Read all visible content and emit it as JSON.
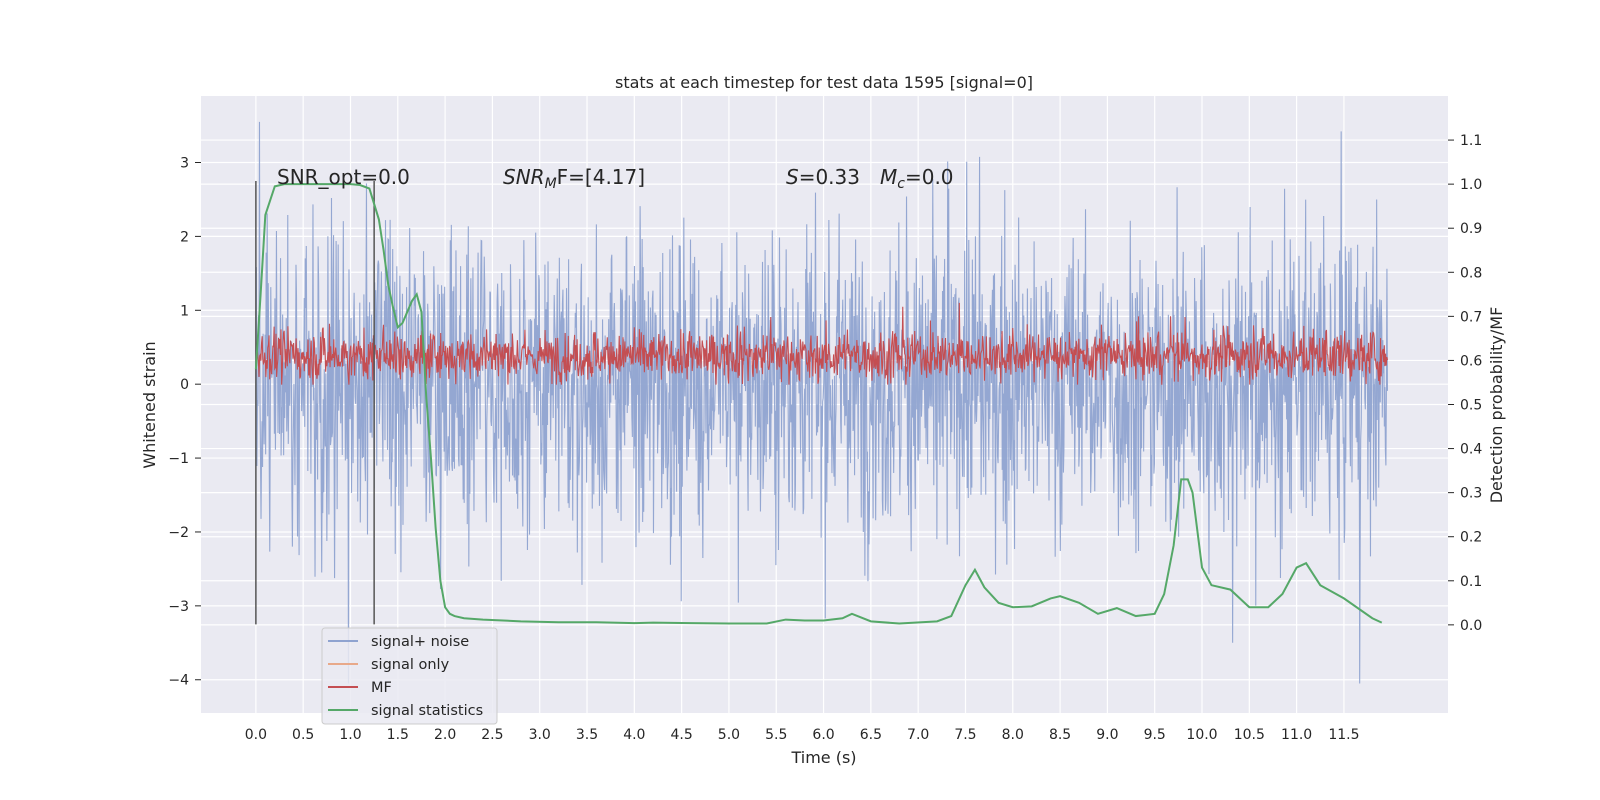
{
  "chart_data": {
    "type": "line",
    "title": "stats at each timestep for test data 1595 [signal=0]",
    "xlabel": "Time (s)",
    "ylabel_left": "Whitened strain",
    "ylabel_right": "Detection probability/MF",
    "xlim": [
      -0.58,
      12.6
    ],
    "ylim_left": [
      -4.45,
      3.9
    ],
    "ylim_right": [
      -0.2,
      1.2
    ],
    "x_ticks": [
      "0.0",
      "0.5",
      "1.0",
      "1.5",
      "2.0",
      "2.5",
      "3.0",
      "3.5",
      "4.0",
      "4.5",
      "5.0",
      "5.5",
      "6.0",
      "6.5",
      "7.0",
      "7.5",
      "8.0",
      "8.5",
      "9.0",
      "9.5",
      "10.0",
      "10.5",
      "11.0",
      "11.5"
    ],
    "y_left_ticks": [
      "3",
      "2",
      "1",
      "0",
      "−1",
      "−2",
      "−3",
      "−4"
    ],
    "y_right_ticks": [
      "1.1",
      "1.0",
      "0.9",
      "0.8",
      "0.7",
      "0.6",
      "0.5",
      "0.4",
      "0.3",
      "0.2",
      "0.1",
      "0.0"
    ],
    "grid": true,
    "legend_position": "lower-left",
    "annotations": {
      "snr_opt": "SNR_opt=0.0",
      "snr_mf_main": "SNR",
      "snr_mf_sub": "M",
      "snr_mf_rest": "F=[4.17]",
      "s_label": "S",
      "s_value": "=0.33",
      "mc_main": "M",
      "mc_sub": "c",
      "mc_value": "=0.0"
    },
    "vertical_markers_x": [
      0.0,
      1.25
    ],
    "series": [
      {
        "name": "signal+ noise",
        "color": "#8fa3d0",
        "axis": "left",
        "noise_envelope": {
          "x_range": [
            0.0,
            11.96
          ],
          "typical_range": [
            -1.5,
            1.5
          ],
          "max": 3.55,
          "min": -4.05
        }
      },
      {
        "name": "signal only",
        "color": "#e8a98a",
        "axis": "left",
        "values": []
      },
      {
        "name": "MF",
        "color": "#c44e52",
        "axis": "right",
        "noise_envelope": {
          "x_range": [
            0.0,
            11.96
          ],
          "typical_range": [
            0.54,
            0.68
          ],
          "max": 0.74
        }
      },
      {
        "name": "signal statistics",
        "color": "#55a868",
        "axis": "right",
        "x": [
          0.0,
          0.05,
          0.1,
          0.2,
          0.3,
          0.5,
          0.8,
          1.0,
          1.1,
          1.2,
          1.3,
          1.35,
          1.4,
          1.45,
          1.5,
          1.55,
          1.6,
          1.65,
          1.7,
          1.75,
          1.8,
          1.85,
          1.9,
          1.95,
          2.0,
          2.05,
          2.1,
          2.2,
          2.4,
          2.8,
          3.2,
          3.6,
          4.0,
          4.2,
          4.6,
          5.0,
          5.4,
          5.6,
          5.8,
          6.0,
          6.2,
          6.3,
          6.5,
          6.8,
          7.2,
          7.35,
          7.5,
          7.6,
          7.7,
          7.85,
          8.0,
          8.2,
          8.4,
          8.5,
          8.7,
          8.9,
          9.1,
          9.3,
          9.5,
          9.6,
          9.7,
          9.78,
          9.85,
          9.9,
          10.0,
          10.1,
          10.3,
          10.5,
          10.7,
          10.85,
          11.0,
          11.1,
          11.25,
          11.5,
          11.8,
          11.9
        ],
        "y": [
          0.58,
          0.75,
          0.93,
          0.995,
          1.0,
          1.0,
          1.0,
          1.0,
          0.998,
          0.99,
          0.92,
          0.85,
          0.77,
          0.72,
          0.675,
          0.685,
          0.71,
          0.735,
          0.75,
          0.71,
          0.52,
          0.38,
          0.22,
          0.1,
          0.04,
          0.025,
          0.02,
          0.015,
          0.012,
          0.008,
          0.006,
          0.006,
          0.004,
          0.005,
          0.004,
          0.003,
          0.003,
          0.012,
          0.01,
          0.01,
          0.015,
          0.025,
          0.008,
          0.003,
          0.008,
          0.02,
          0.09,
          0.125,
          0.085,
          0.05,
          0.04,
          0.042,
          0.06,
          0.065,
          0.05,
          0.025,
          0.038,
          0.02,
          0.025,
          0.07,
          0.18,
          0.33,
          0.33,
          0.3,
          0.13,
          0.09,
          0.08,
          0.04,
          0.04,
          0.07,
          0.13,
          0.14,
          0.09,
          0.06,
          0.015,
          0.005
        ]
      }
    ]
  }
}
